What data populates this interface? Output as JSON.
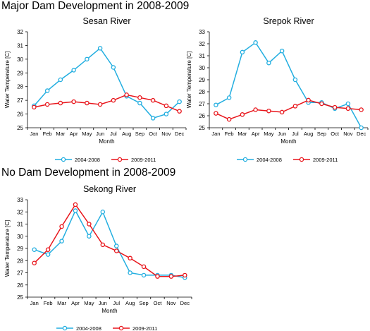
{
  "section_titles": {
    "top": "Major Dam Development in 2008-2009",
    "bottom": "No Dam Development in 2008-2009"
  },
  "colors": {
    "series_2004_2008": "#22aee0",
    "series_2009_2011": "#e8151b"
  },
  "chart_data": [
    {
      "type": "line",
      "title": "Sesan River",
      "xlabel": "Month",
      "ylabel": "Water Temperature [C]",
      "ylim": [
        25,
        32
      ],
      "yticks": [
        25,
        26,
        27,
        28,
        29,
        30,
        31,
        32
      ],
      "categories": [
        "Jan",
        "Feb",
        "Mar",
        "Apr",
        "May",
        "Jun",
        "Jul",
        "Aug",
        "Sep",
        "Oct",
        "Nov",
        "Dec"
      ],
      "grid": false,
      "legend": "bottom",
      "series": [
        {
          "name": "2004-2008",
          "values": [
            26.6,
            27.7,
            28.5,
            29.2,
            30.0,
            30.8,
            29.4,
            27.3,
            26.8,
            25.7,
            26.0,
            26.9
          ]
        },
        {
          "name": "2009-2011",
          "values": [
            26.5,
            26.7,
            26.8,
            26.9,
            26.8,
            26.7,
            27.0,
            27.4,
            27.2,
            27.0,
            26.6,
            26.2
          ]
        }
      ]
    },
    {
      "type": "line",
      "title": "Srepok River",
      "xlabel": "Month",
      "ylabel": "Water Temperature [C]",
      "ylim": [
        25,
        33
      ],
      "yticks": [
        25,
        26,
        27,
        28,
        29,
        30,
        31,
        32,
        33
      ],
      "categories": [
        "Jan",
        "Feb",
        "Mar",
        "Apr",
        "May",
        "Jun",
        "Jul",
        "Aug",
        "Sep",
        "Oct",
        "Nov",
        "Dec"
      ],
      "grid": false,
      "legend": "bottom",
      "series": [
        {
          "name": "2004-2008",
          "values": [
            26.9,
            27.5,
            31.3,
            32.1,
            30.4,
            31.4,
            29.0,
            27.1,
            27.1,
            26.6,
            27.0,
            25.0
          ]
        },
        {
          "name": "2009-2011",
          "values": [
            26.2,
            25.7,
            26.1,
            26.5,
            26.4,
            26.3,
            26.8,
            27.3,
            27.0,
            26.7,
            26.6,
            26.5
          ]
        }
      ]
    },
    {
      "type": "line",
      "title": "Sekong River",
      "xlabel": "Month",
      "ylabel": "Water Temperature [C]",
      "ylim": [
        25,
        33
      ],
      "yticks": [
        25,
        26,
        27,
        28,
        29,
        30,
        31,
        32,
        33
      ],
      "categories": [
        "Jan",
        "Feb",
        "Mar",
        "Apr",
        "May",
        "Jun",
        "Jul",
        "Aug",
        "Sep",
        "Oct",
        "Nov",
        "Dec"
      ],
      "grid": false,
      "legend": "bottom",
      "series": [
        {
          "name": "2004-2008",
          "values": [
            28.9,
            28.5,
            29.6,
            32.1,
            30.0,
            32.0,
            29.2,
            27.0,
            26.8,
            26.8,
            26.8,
            26.6
          ]
        },
        {
          "name": "2009-2011",
          "values": [
            27.8,
            28.9,
            30.8,
            32.6,
            31.0,
            29.3,
            28.8,
            28.2,
            27.5,
            26.7,
            26.7,
            26.8
          ]
        }
      ]
    }
  ]
}
